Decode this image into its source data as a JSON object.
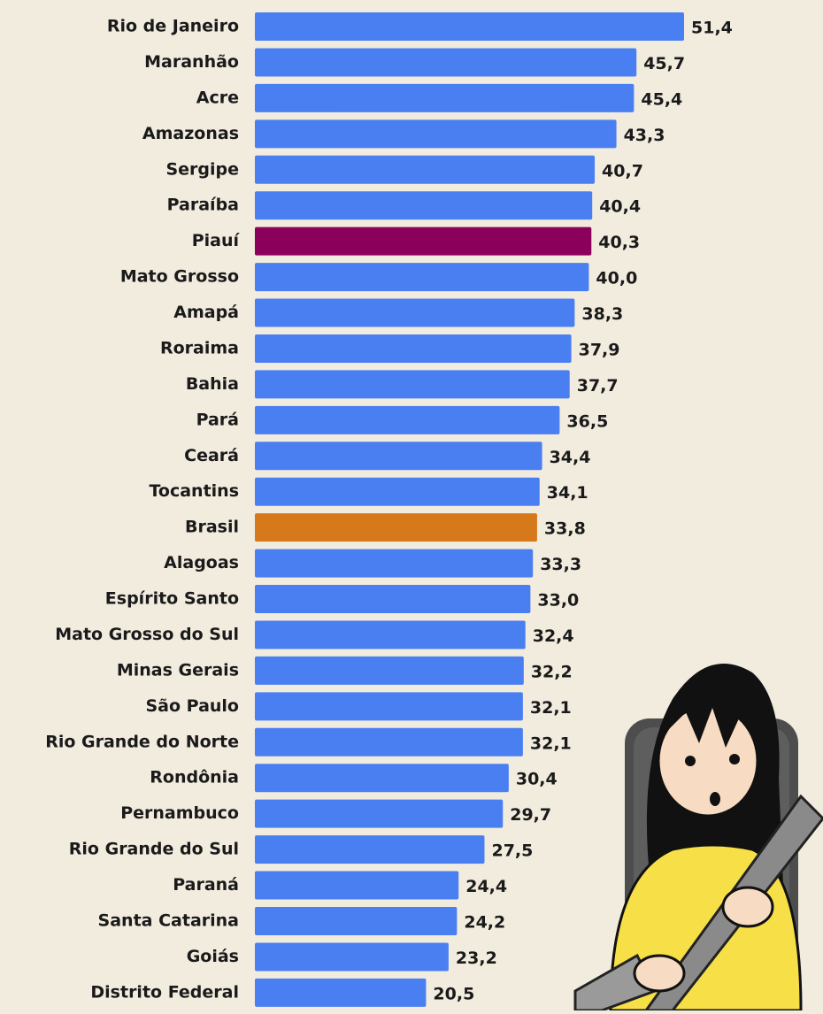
{
  "chart_data": {
    "type": "bar",
    "orientation": "horizontal",
    "categories": [
      "Rio de Janeiro",
      "Maranhão",
      "Acre",
      "Amazonas",
      "Sergipe",
      "Paraíba",
      "Piauí",
      "Mato Grosso",
      "Amapá",
      "Roraima",
      "Bahia",
      "Pará",
      "Ceará",
      "Tocantins",
      "Brasil",
      "Alagoas",
      "Espírito Santo",
      "Mato Grosso do Sul",
      "Minas Gerais",
      "São Paulo",
      "Rio Grande do Norte",
      "Rondônia",
      "Pernambuco",
      "Rio Grande do Sul",
      "Paraná",
      "Santa Catarina",
      "Goiás",
      "Distrito Federal"
    ],
    "values": [
      51.4,
      45.7,
      45.4,
      43.3,
      40.7,
      40.4,
      40.3,
      40.0,
      38.3,
      37.9,
      37.7,
      36.5,
      34.4,
      34.1,
      33.8,
      33.3,
      33.0,
      32.4,
      32.2,
      32.1,
      32.1,
      30.4,
      29.7,
      27.5,
      24.4,
      24.2,
      23.2,
      20.5
    ],
    "value_labels": [
      "51,4",
      "45,7",
      "45,4",
      "43,3",
      "40,7",
      "40,4",
      "40,3",
      "40,0",
      "38,3",
      "37,9",
      "37,7",
      "36,5",
      "34,4",
      "34,1",
      "33,8",
      "33,3",
      "33,0",
      "32,4",
      "32,2",
      "32,1",
      "32,1",
      "30,4",
      "29,7",
      "27,5",
      "24,4",
      "24,2",
      "23,2",
      "20,5"
    ],
    "colors": [
      "#4a7ff2",
      "#4a7ff2",
      "#4a7ff2",
      "#4a7ff2",
      "#4a7ff2",
      "#4a7ff2",
      "#8b005a",
      "#4a7ff2",
      "#4a7ff2",
      "#4a7ff2",
      "#4a7ff2",
      "#4a7ff2",
      "#4a7ff2",
      "#4a7ff2",
      "#d5791b",
      "#4a7ff2",
      "#4a7ff2",
      "#4a7ff2",
      "#4a7ff2",
      "#4a7ff2",
      "#4a7ff2",
      "#4a7ff2",
      "#4a7ff2",
      "#4a7ff2",
      "#4a7ff2",
      "#4a7ff2",
      "#4a7ff2",
      "#4a7ff2"
    ]
  }
}
